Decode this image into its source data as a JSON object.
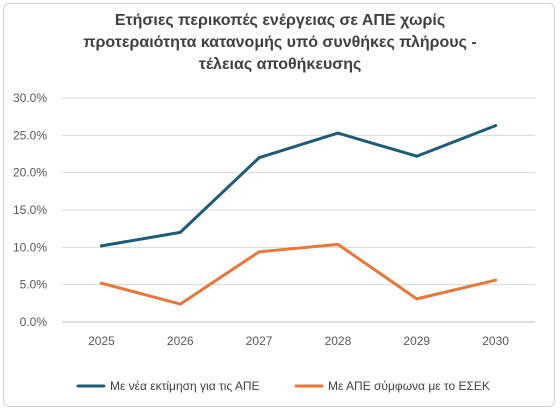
{
  "chart_data": {
    "type": "line",
    "title_lines": [
      "Ετήσιες περικοπές ενέργειας σε ΑΠΕ χωρίς",
      "προτεραιότητα κατανομής υπό συνθήκες πλήρους -",
      "τέλειας αποθήκευσης"
    ],
    "categories": [
      "2025",
      "2026",
      "2027",
      "2028",
      "2029",
      "2030"
    ],
    "y_ticks": [
      "0.0%",
      "5.0%",
      "10.0%",
      "15.0%",
      "20.0%",
      "25.0%",
      "30.0%"
    ],
    "ylim": [
      0,
      30
    ],
    "grid": true,
    "legend_position": "bottom",
    "series": [
      {
        "name": "Με νέα εκτίμηση για τις ΑΠΕ",
        "color": "#1f5c7a",
        "values": [
          10.2,
          12.0,
          22.0,
          25.3,
          22.2,
          26.3
        ]
      },
      {
        "name": "Με ΑΠΕ σύμφωνα με το ΕΣΕΚ",
        "color": "#e8773a",
        "values": [
          5.2,
          2.4,
          9.4,
          10.4,
          3.1,
          5.6
        ]
      }
    ]
  }
}
